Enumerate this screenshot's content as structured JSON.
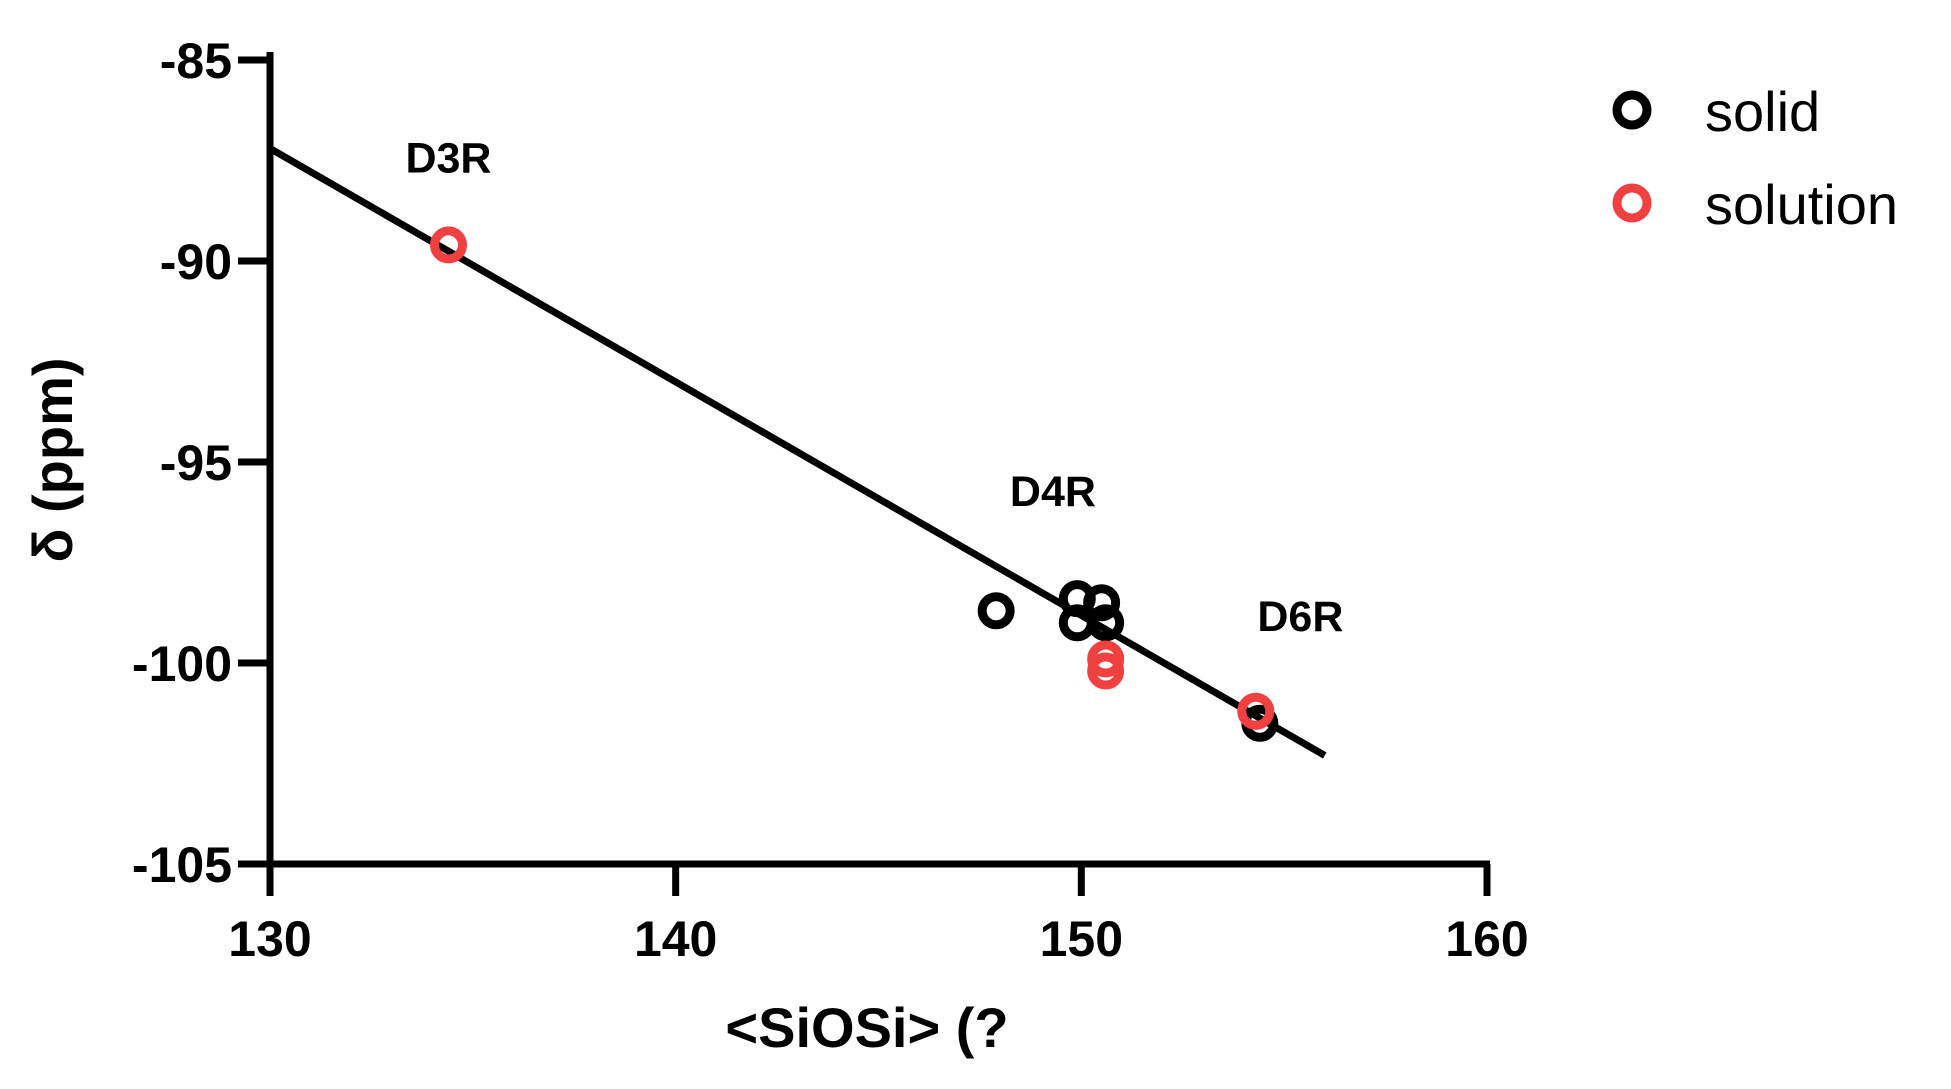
{
  "chart_data": {
    "type": "scatter",
    "title": "",
    "xlabel": "<SiOSi> (?",
    "ylabel": "δ (ppm)",
    "xlim": [
      130,
      160
    ],
    "ylim": [
      -105,
      -85
    ],
    "x_ticks": [
      130,
      140,
      150,
      160
    ],
    "y_ticks": [
      -85,
      -90,
      -95,
      -100,
      -105
    ],
    "x_tick_labels": [
      "130",
      "140",
      "150",
      "160"
    ],
    "y_tick_labels": [
      "-85",
      "-90",
      "-95",
      "-100",
      "-105"
    ],
    "grid": false,
    "legend": {
      "position": "top-right",
      "entries": [
        "solid",
        "solution"
      ]
    },
    "series": [
      {
        "name": "solid",
        "color": "#000000",
        "marker": "open-circle",
        "points": [
          {
            "x": 147.9,
            "y": -98.7
          },
          {
            "x": 149.9,
            "y": -98.4
          },
          {
            "x": 150.5,
            "y": -98.5
          },
          {
            "x": 149.9,
            "y": -99.0
          },
          {
            "x": 150.6,
            "y": -99.0
          },
          {
            "x": 154.4,
            "y": -101.5
          }
        ]
      },
      {
        "name": "solution",
        "color": "#f04040",
        "marker": "open-circle",
        "points": [
          {
            "x": 134.4,
            "y": -89.6
          },
          {
            "x": 150.6,
            "y": -99.9
          },
          {
            "x": 150.6,
            "y": -100.2
          },
          {
            "x": 154.3,
            "y": -101.2
          }
        ]
      }
    ],
    "fit_line": {
      "color": "#000000",
      "points": [
        {
          "x": 130.0,
          "y": -87.2
        },
        {
          "x": 156.0,
          "y": -102.3
        }
      ]
    },
    "annotations": [
      {
        "text": "D3R",
        "x": 134.4,
        "y": -87.8
      },
      {
        "text": "D4R",
        "x": 149.3,
        "y": -96.1
      },
      {
        "text": "D6R",
        "x": 155.4,
        "y": -99.2
      }
    ]
  }
}
